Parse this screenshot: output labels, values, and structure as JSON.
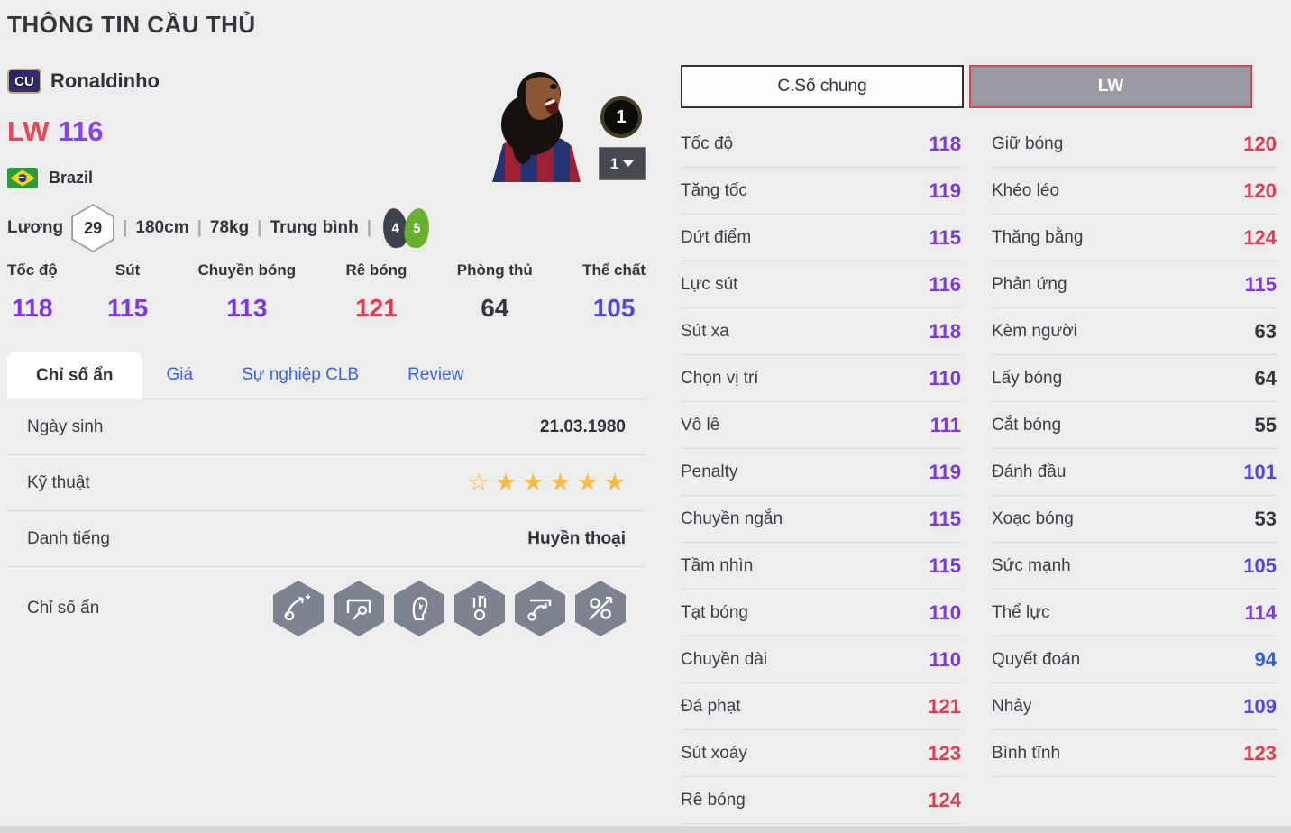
{
  "page": {
    "title": "THÔNG TIN CẦU THỦ"
  },
  "player": {
    "class_badge": "CU",
    "name": "Ronaldinho",
    "position": "LW",
    "ovr": "116",
    "nation": "Brazil",
    "salary_label": "Lương",
    "salary": "29",
    "height": "180cm",
    "weight": "78kg",
    "form": "Trung bình",
    "left_foot": "4",
    "right_foot": "5",
    "grade_badge": "1",
    "grade_selected": "1"
  },
  "colors": {
    "position": "#ed4458",
    "ovr": "#8a3ff0",
    "tiers": [
      {
        "min": 120,
        "color": "#e23a50"
      },
      {
        "min": 110,
        "color": "#7d36e4"
      },
      {
        "min": 100,
        "color": "#5345e2"
      },
      {
        "min": 90,
        "color": "#2f5ce0"
      },
      {
        "min": 0,
        "color": "#35363e"
      }
    ]
  },
  "summary_stats": [
    {
      "label": "Tốc độ",
      "value": 118
    },
    {
      "label": "Sút",
      "value": 115
    },
    {
      "label": "Chuyền bóng",
      "value": 113
    },
    {
      "label": "Rê bóng",
      "value": 121
    },
    {
      "label": "Phòng thủ",
      "value": 64
    },
    {
      "label": "Thể chất",
      "value": 105
    }
  ],
  "tabs": [
    {
      "label": "Chỉ số ẩn",
      "active": true
    },
    {
      "label": "Giá",
      "active": false
    },
    {
      "label": "Sự nghiệp CLB",
      "active": false
    },
    {
      "label": "Review",
      "active": false
    }
  ],
  "details": {
    "birth_label": "Ngày sinh",
    "birth_value": "21.03.1980",
    "skill_label": "Kỹ thuật",
    "skill_stars_outline": 1,
    "skill_stars_filled": 5,
    "fame_label": "Danh tiếng",
    "fame_value": "Huyền thoại",
    "hidden_label": "Chỉ số ẩn",
    "hidden_icons": [
      "curved-pass",
      "long-shot",
      "flair-head",
      "chip-shot",
      "flip-flap",
      "skill-dribble"
    ]
  },
  "stat_tabs": {
    "general": "C.Số chung",
    "position": "LW"
  },
  "general_stats": [
    {
      "label": "Tốc độ",
      "value": 118
    },
    {
      "label": "Tăng tốc",
      "value": 119
    },
    {
      "label": "Dứt điểm",
      "value": 115
    },
    {
      "label": "Lực sút",
      "value": 116
    },
    {
      "label": "Sút xa",
      "value": 118
    },
    {
      "label": "Chọn vị trí",
      "value": 110
    },
    {
      "label": "Vô lê",
      "value": 111
    },
    {
      "label": "Penalty",
      "value": 119
    },
    {
      "label": "Chuyền ngắn",
      "value": 115
    },
    {
      "label": "Tầm nhìn",
      "value": 115
    },
    {
      "label": "Tạt bóng",
      "value": 110
    },
    {
      "label": "Chuyền dài",
      "value": 110
    },
    {
      "label": "Đá phạt",
      "value": 121
    },
    {
      "label": "Sút xoáy",
      "value": 123
    },
    {
      "label": "Rê bóng",
      "value": 124
    }
  ],
  "position_stats": [
    {
      "label": "Giữ bóng",
      "value": 120
    },
    {
      "label": "Khéo léo",
      "value": 120
    },
    {
      "label": "Thăng bằng",
      "value": 124
    },
    {
      "label": "Phản ứng",
      "value": 115
    },
    {
      "label": "Kèm người",
      "value": 63
    },
    {
      "label": "Lấy bóng",
      "value": 64
    },
    {
      "label": "Cắt bóng",
      "value": 55
    },
    {
      "label": "Đánh đầu",
      "value": 101
    },
    {
      "label": "Xoạc bóng",
      "value": 53
    },
    {
      "label": "Sức mạnh",
      "value": 105
    },
    {
      "label": "Thể lực",
      "value": 114
    },
    {
      "label": "Quyết đoán",
      "value": 94
    },
    {
      "label": "Nhảy",
      "value": 109
    },
    {
      "label": "Bình tĩnh",
      "value": 123
    }
  ]
}
